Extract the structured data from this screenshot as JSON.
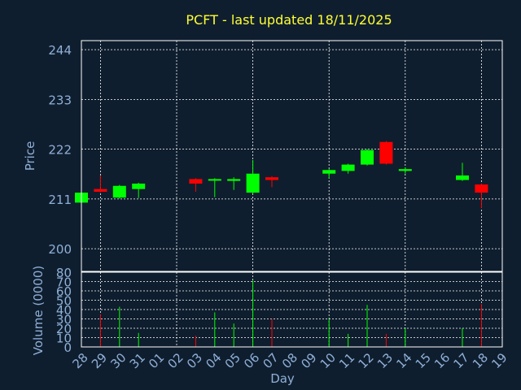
{
  "chart_data": {
    "type": "candlestick",
    "title": "PCFT - last updated 18/11/2025",
    "xlabel": "Day",
    "price_panel": {
      "ylabel": "Price",
      "ylim": [
        195,
        246
      ],
      "yticks": [
        200,
        211,
        222,
        233,
        244
      ]
    },
    "volume_panel": {
      "ylabel": "Volume (0000)",
      "ylim": [
        0,
        80
      ],
      "yticks": [
        0,
        10,
        20,
        30,
        40,
        50,
        60,
        70,
        80
      ]
    },
    "x_tick_labels": [
      "28",
      "29",
      "30",
      "31",
      "01",
      "02",
      "03",
      "04",
      "05",
      "06",
      "07",
      "08",
      "09",
      "10",
      "11",
      "12",
      "13",
      "14",
      "15",
      "16",
      "17",
      "18",
      "19"
    ],
    "grid": true,
    "colors": {
      "up": "#00ff00",
      "down": "#ff0000"
    },
    "candles": [
      {
        "i": 0,
        "open": 210.2,
        "close": 212.4,
        "high": 212.6,
        "low": 210.0,
        "volume": 0
      },
      {
        "i": 1,
        "open": 213.2,
        "close": 212.6,
        "high": 216.2,
        "low": 212.4,
        "volume": 35
      },
      {
        "i": 2,
        "open": 211.3,
        "close": 213.9,
        "high": 214.1,
        "low": 211.1,
        "volume": 43
      },
      {
        "i": 3,
        "open": 213.2,
        "close": 214.4,
        "high": 214.6,
        "low": 211.2,
        "volume": 15
      },
      {
        "i": 6,
        "open": 215.4,
        "close": 214.4,
        "high": 215.6,
        "low": 212.6,
        "volume": 12
      },
      {
        "i": 7,
        "open": 215.1,
        "close": 215.4,
        "high": 215.6,
        "low": 211.4,
        "volume": 37
      },
      {
        "i": 8,
        "open": 215.0,
        "close": 215.4,
        "high": 215.8,
        "low": 213.0,
        "volume": 25
      },
      {
        "i": 9,
        "open": 212.4,
        "close": 216.6,
        "high": 219.6,
        "low": 212.2,
        "volume": 71
      },
      {
        "i": 10,
        "open": 215.8,
        "close": 215.2,
        "high": 216.0,
        "low": 213.6,
        "volume": 30
      },
      {
        "i": 13,
        "open": 216.6,
        "close": 217.4,
        "high": 217.6,
        "low": 215.6,
        "volume": 30
      },
      {
        "i": 14,
        "open": 217.2,
        "close": 218.6,
        "high": 218.8,
        "low": 216.6,
        "volume": 14
      },
      {
        "i": 15,
        "open": 218.6,
        "close": 221.8,
        "high": 222.0,
        "low": 218.4,
        "volume": 45
      },
      {
        "i": 16,
        "open": 223.6,
        "close": 218.8,
        "high": 223.8,
        "low": 218.6,
        "volume": 14
      },
      {
        "i": 17,
        "open": 217.2,
        "close": 217.6,
        "high": 218.0,
        "low": 216.6,
        "volume": 20
      },
      {
        "i": 20,
        "open": 215.2,
        "close": 216.2,
        "high": 219.0,
        "low": 215.0,
        "volume": 20
      },
      {
        "i": 21,
        "open": 214.2,
        "close": 212.4,
        "high": 214.4,
        "low": 209.0,
        "volume": 46
      }
    ]
  }
}
